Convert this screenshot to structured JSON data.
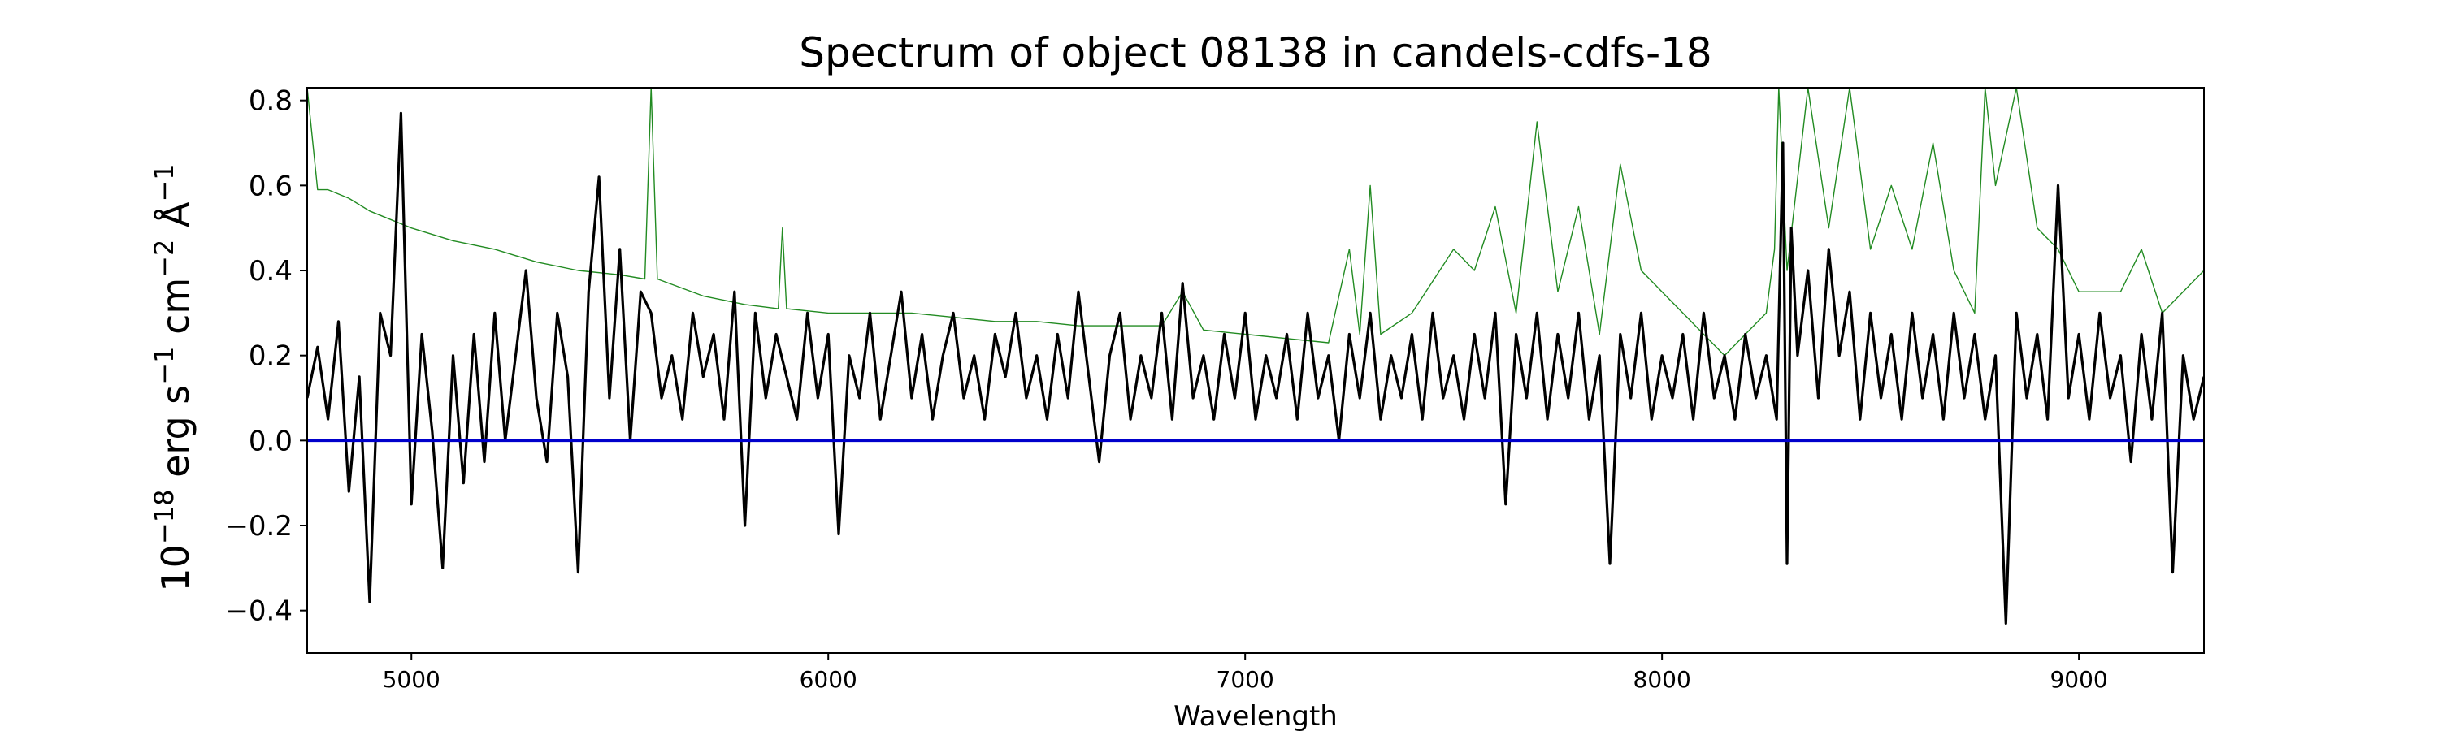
{
  "chart_data": {
    "type": "line",
    "title": "Spectrum of object 08138 in candels-cdfs-18",
    "xlabel": "Wavelength",
    "ylabel": {
      "base": "10",
      "exp": "−18",
      "unit": " erg s",
      "unit_exp1": "−1",
      "unit2": " cm",
      "unit_exp2": "−2",
      "unit3": " Å",
      "unit_exp3": "−1"
    },
    "xlim": [
      4750,
      9300
    ],
    "ylim": [
      -0.5,
      0.83
    ],
    "xticks": [
      5000,
      6000,
      7000,
      8000,
      9000
    ],
    "xtick_labels": [
      "5000",
      "6000",
      "7000",
      "8000",
      "9000"
    ],
    "yticks": [
      -0.4,
      -0.2,
      0.0,
      0.2,
      0.4,
      0.6,
      0.8
    ],
    "ytick_labels": [
      "−0.4",
      "−0.2",
      "0.0",
      "0.2",
      "0.4",
      "0.6",
      "0.8"
    ],
    "grid": false,
    "series": [
      {
        "role": "flux",
        "color": "#000000",
        "points": [
          [
            4750,
            0.1
          ],
          [
            4775,
            0.22
          ],
          [
            4800,
            0.05
          ],
          [
            4825,
            0.28
          ],
          [
            4850,
            -0.12
          ],
          [
            4875,
            0.15
          ],
          [
            4900,
            -0.38
          ],
          [
            4925,
            0.3
          ],
          [
            4950,
            0.2
          ],
          [
            4975,
            0.77
          ],
          [
            5000,
            -0.15
          ],
          [
            5025,
            0.25
          ],
          [
            5050,
            0.02
          ],
          [
            5075,
            -0.3
          ],
          [
            5100,
            0.2
          ],
          [
            5125,
            -0.1
          ],
          [
            5150,
            0.25
          ],
          [
            5175,
            -0.05
          ],
          [
            5200,
            0.3
          ],
          [
            5225,
            0.0
          ],
          [
            5250,
            0.2
          ],
          [
            5275,
            0.4
          ],
          [
            5300,
            0.1
          ],
          [
            5325,
            -0.05
          ],
          [
            5350,
            0.3
          ],
          [
            5375,
            0.15
          ],
          [
            5400,
            -0.31
          ],
          [
            5425,
            0.35
          ],
          [
            5450,
            0.62
          ],
          [
            5475,
            0.1
          ],
          [
            5500,
            0.45
          ],
          [
            5525,
            0.0
          ],
          [
            5550,
            0.35
          ],
          [
            5575,
            0.3
          ],
          [
            5600,
            0.1
          ],
          [
            5625,
            0.2
          ],
          [
            5650,
            0.05
          ],
          [
            5675,
            0.3
          ],
          [
            5700,
            0.15
          ],
          [
            5725,
            0.25
          ],
          [
            5750,
            0.05
          ],
          [
            5775,
            0.35
          ],
          [
            5800,
            -0.2
          ],
          [
            5825,
            0.3
          ],
          [
            5850,
            0.1
          ],
          [
            5875,
            0.25
          ],
          [
            5900,
            0.15
          ],
          [
            5925,
            0.05
          ],
          [
            5950,
            0.3
          ],
          [
            5975,
            0.1
          ],
          [
            6000,
            0.25
          ],
          [
            6025,
            -0.22
          ],
          [
            6050,
            0.2
          ],
          [
            6075,
            0.1
          ],
          [
            6100,
            0.3
          ],
          [
            6125,
            0.05
          ],
          [
            6150,
            0.2
          ],
          [
            6175,
            0.35
          ],
          [
            6200,
            0.1
          ],
          [
            6225,
            0.25
          ],
          [
            6250,
            0.05
          ],
          [
            6275,
            0.2
          ],
          [
            6300,
            0.3
          ],
          [
            6325,
            0.1
          ],
          [
            6350,
            0.2
          ],
          [
            6375,
            0.05
          ],
          [
            6400,
            0.25
          ],
          [
            6425,
            0.15
          ],
          [
            6450,
            0.3
          ],
          [
            6475,
            0.1
          ],
          [
            6500,
            0.2
          ],
          [
            6525,
            0.05
          ],
          [
            6550,
            0.25
          ],
          [
            6575,
            0.1
          ],
          [
            6600,
            0.35
          ],
          [
            6625,
            0.15
          ],
          [
            6650,
            -0.05
          ],
          [
            6675,
            0.2
          ],
          [
            6700,
            0.3
          ],
          [
            6725,
            0.05
          ],
          [
            6750,
            0.2
          ],
          [
            6775,
            0.1
          ],
          [
            6800,
            0.3
          ],
          [
            6825,
            0.05
          ],
          [
            6850,
            0.37
          ],
          [
            6875,
            0.1
          ],
          [
            6900,
            0.2
          ],
          [
            6925,
            0.05
          ],
          [
            6950,
            0.25
          ],
          [
            6975,
            0.1
          ],
          [
            7000,
            0.3
          ],
          [
            7025,
            0.05
          ],
          [
            7050,
            0.2
          ],
          [
            7075,
            0.1
          ],
          [
            7100,
            0.25
          ],
          [
            7125,
            0.05
          ],
          [
            7150,
            0.3
          ],
          [
            7175,
            0.1
          ],
          [
            7200,
            0.2
          ],
          [
            7225,
            0.0
          ],
          [
            7250,
            0.25
          ],
          [
            7275,
            0.1
          ],
          [
            7300,
            0.3
          ],
          [
            7325,
            0.05
          ],
          [
            7350,
            0.2
          ],
          [
            7375,
            0.1
          ],
          [
            7400,
            0.25
          ],
          [
            7425,
            0.05
          ],
          [
            7450,
            0.3
          ],
          [
            7475,
            0.1
          ],
          [
            7500,
            0.2
          ],
          [
            7525,
            0.05
          ],
          [
            7550,
            0.25
          ],
          [
            7575,
            0.1
          ],
          [
            7600,
            0.3
          ],
          [
            7625,
            -0.15
          ],
          [
            7650,
            0.25
          ],
          [
            7675,
            0.1
          ],
          [
            7700,
            0.3
          ],
          [
            7725,
            0.05
          ],
          [
            7750,
            0.25
          ],
          [
            7775,
            0.1
          ],
          [
            7800,
            0.3
          ],
          [
            7825,
            0.05
          ],
          [
            7850,
            0.2
          ],
          [
            7875,
            -0.29
          ],
          [
            7900,
            0.25
          ],
          [
            7925,
            0.1
          ],
          [
            7950,
            0.3
          ],
          [
            7975,
            0.05
          ],
          [
            8000,
            0.2
          ],
          [
            8025,
            0.1
          ],
          [
            8050,
            0.25
          ],
          [
            8075,
            0.05
          ],
          [
            8100,
            0.3
          ],
          [
            8125,
            0.1
          ],
          [
            8150,
            0.2
          ],
          [
            8175,
            0.05
          ],
          [
            8200,
            0.25
          ],
          [
            8225,
            0.1
          ],
          [
            8250,
            0.2
          ],
          [
            8275,
            0.05
          ],
          [
            8290,
            0.7
          ],
          [
            8300,
            -0.29
          ],
          [
            8310,
            0.5
          ],
          [
            8325,
            0.2
          ],
          [
            8350,
            0.4
          ],
          [
            8375,
            0.1
          ],
          [
            8400,
            0.45
          ],
          [
            8425,
            0.2
          ],
          [
            8450,
            0.35
          ],
          [
            8475,
            0.05
          ],
          [
            8500,
            0.3
          ],
          [
            8525,
            0.1
          ],
          [
            8550,
            0.25
          ],
          [
            8575,
            0.05
          ],
          [
            8600,
            0.3
          ],
          [
            8625,
            0.1
          ],
          [
            8650,
            0.25
          ],
          [
            8675,
            0.05
          ],
          [
            8700,
            0.3
          ],
          [
            8725,
            0.1
          ],
          [
            8750,
            0.25
          ],
          [
            8775,
            0.05
          ],
          [
            8800,
            0.2
          ],
          [
            8825,
            -0.43
          ],
          [
            8850,
            0.3
          ],
          [
            8875,
            0.1
          ],
          [
            8900,
            0.25
          ],
          [
            8925,
            0.05
          ],
          [
            8950,
            0.6
          ],
          [
            8975,
            0.1
          ],
          [
            9000,
            0.25
          ],
          [
            9025,
            0.05
          ],
          [
            9050,
            0.3
          ],
          [
            9075,
            0.1
          ],
          [
            9100,
            0.2
          ],
          [
            9125,
            -0.05
          ],
          [
            9150,
            0.25
          ],
          [
            9175,
            0.05
          ],
          [
            9200,
            0.3
          ],
          [
            9225,
            -0.31
          ],
          [
            9250,
            0.2
          ],
          [
            9275,
            0.05
          ],
          [
            9300,
            0.15
          ]
        ]
      },
      {
        "role": "error",
        "color": "#228b22",
        "points": [
          [
            4750,
            0.83
          ],
          [
            4775,
            0.59
          ],
          [
            4800,
            0.59
          ],
          [
            4850,
            0.57
          ],
          [
            4900,
            0.54
          ],
          [
            5000,
            0.5
          ],
          [
            5100,
            0.47
          ],
          [
            5200,
            0.45
          ],
          [
            5300,
            0.42
          ],
          [
            5400,
            0.4
          ],
          [
            5500,
            0.39
          ],
          [
            5560,
            0.38
          ],
          [
            5575,
            0.83
          ],
          [
            5590,
            0.38
          ],
          [
            5700,
            0.34
          ],
          [
            5800,
            0.32
          ],
          [
            5880,
            0.31
          ],
          [
            5890,
            0.5
          ],
          [
            5900,
            0.31
          ],
          [
            6000,
            0.3
          ],
          [
            6100,
            0.3
          ],
          [
            6200,
            0.3
          ],
          [
            6300,
            0.29
          ],
          [
            6400,
            0.28
          ],
          [
            6500,
            0.28
          ],
          [
            6600,
            0.27
          ],
          [
            6700,
            0.27
          ],
          [
            6800,
            0.27
          ],
          [
            6850,
            0.35
          ],
          [
            6900,
            0.26
          ],
          [
            7000,
            0.25
          ],
          [
            7100,
            0.24
          ],
          [
            7200,
            0.23
          ],
          [
            7250,
            0.45
          ],
          [
            7275,
            0.25
          ],
          [
            7300,
            0.6
          ],
          [
            7325,
            0.25
          ],
          [
            7400,
            0.3
          ],
          [
            7500,
            0.45
          ],
          [
            7550,
            0.4
          ],
          [
            7600,
            0.55
          ],
          [
            7650,
            0.3
          ],
          [
            7700,
            0.75
          ],
          [
            7750,
            0.35
          ],
          [
            7800,
            0.55
          ],
          [
            7850,
            0.25
          ],
          [
            7900,
            0.65
          ],
          [
            7950,
            0.4
          ],
          [
            8000,
            0.35
          ],
          [
            8050,
            0.3
          ],
          [
            8100,
            0.25
          ],
          [
            8150,
            0.2
          ],
          [
            8200,
            0.25
          ],
          [
            8250,
            0.3
          ],
          [
            8270,
            0.45
          ],
          [
            8280,
            0.83
          ],
          [
            8300,
            0.4
          ],
          [
            8350,
            0.83
          ],
          [
            8400,
            0.5
          ],
          [
            8450,
            0.83
          ],
          [
            8500,
            0.45
          ],
          [
            8550,
            0.6
          ],
          [
            8600,
            0.45
          ],
          [
            8650,
            0.7
          ],
          [
            8700,
            0.4
          ],
          [
            8750,
            0.3
          ],
          [
            8775,
            0.83
          ],
          [
            8800,
            0.6
          ],
          [
            8850,
            0.83
          ],
          [
            8900,
            0.5
          ],
          [
            8950,
            0.45
          ],
          [
            9000,
            0.35
          ],
          [
            9100,
            0.35
          ],
          [
            9150,
            0.45
          ],
          [
            9200,
            0.3
          ],
          [
            9300,
            0.4
          ]
        ]
      },
      {
        "role": "zero",
        "color": "#0000cc",
        "points": [
          [
            4750,
            0.0
          ],
          [
            9300,
            0.0
          ]
        ]
      }
    ]
  }
}
